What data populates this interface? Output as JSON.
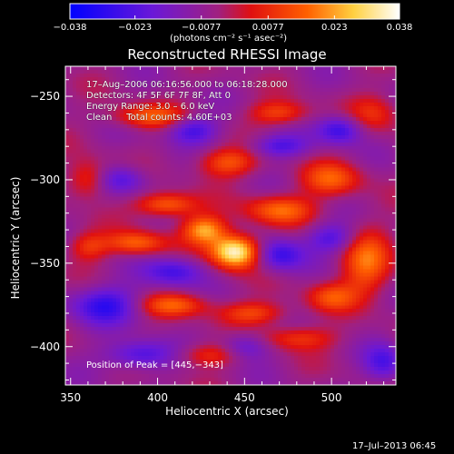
{
  "colorbar": {
    "tick_labels": [
      "−0.038",
      "−0.023",
      "−0.0077",
      "0.0077",
      "0.023",
      "0.038"
    ],
    "tick_values": [
      -0.038,
      -0.023,
      -0.0077,
      0.0077,
      0.023,
      0.038
    ],
    "range": [
      -0.038,
      0.038
    ],
    "unit_text": "(photons cm⁻² s⁻¹ asec⁻²)",
    "colors": [
      "#0000ff",
      "#8020c0",
      "#ff2000",
      "#ffff80",
      "#ffffff"
    ]
  },
  "info": {
    "line1": "17–Aug–2006 06:16:56.000 to 06:18:28.000",
    "line2": "Detectors: 4F 5F 6F 7F 8F, Att 0",
    "line3": "Energy Range: 3.0 – 6.0 keV",
    "line4": "Clean     Total counts: 4.60E+03"
  },
  "peak_text": "Position of Peak = [445,−343]",
  "timestamp": "17–Jul–2013 06:45",
  "chart_data": {
    "type": "heatmap",
    "title": "Reconstructed RHESSI Image",
    "xlabel": "Heliocentric X (arcsec)",
    "ylabel": "Heliocentric Y (arcsec)",
    "xlim": [
      347,
      537
    ],
    "ylim": [
      -423,
      -232
    ],
    "x_ticks": [
      350,
      400,
      450,
      500
    ],
    "x_tick_labels": [
      "350",
      "400",
      "450",
      "500"
    ],
    "y_ticks": [
      -250,
      -300,
      -350,
      -400
    ],
    "y_tick_labels": [
      "−250",
      "−300",
      "−350",
      "−400"
    ],
    "value_range": [
      -0.038,
      0.038
    ],
    "peak": {
      "x": 445,
      "y": -343,
      "value": 0.038
    },
    "features": [
      {
        "x": 445,
        "y": -343,
        "sx": 10,
        "sy": 7,
        "amp": 1.0
      },
      {
        "x": 427,
        "y": -330,
        "sx": 9,
        "sy": 6,
        "amp": 0.65
      },
      {
        "x": 405,
        "y": -315,
        "sx": 12,
        "sy": 5,
        "amp": 0.55
      },
      {
        "x": 388,
        "y": -338,
        "sx": 12,
        "sy": 5,
        "amp": 0.5
      },
      {
        "x": 470,
        "y": -318,
        "sx": 14,
        "sy": 6,
        "amp": 0.5
      },
      {
        "x": 500,
        "y": -300,
        "sx": 12,
        "sy": 7,
        "amp": 0.45
      },
      {
        "x": 440,
        "y": -290,
        "sx": 12,
        "sy": 6,
        "amp": 0.45
      },
      {
        "x": 395,
        "y": -262,
        "sx": 15,
        "sy": 5,
        "amp": 0.45
      },
      {
        "x": 470,
        "y": -260,
        "sx": 12,
        "sy": 5,
        "amp": 0.4
      },
      {
        "x": 360,
        "y": -300,
        "sx": 8,
        "sy": 8,
        "amp": 0.4
      },
      {
        "x": 360,
        "y": -340,
        "sx": 8,
        "sy": 6,
        "amp": 0.35
      },
      {
        "x": 410,
        "y": -375,
        "sx": 14,
        "sy": 5,
        "amp": 0.45
      },
      {
        "x": 455,
        "y": -380,
        "sx": 14,
        "sy": 5,
        "amp": 0.4
      },
      {
        "x": 520,
        "y": -350,
        "sx": 10,
        "sy": 14,
        "amp": 0.5
      },
      {
        "x": 500,
        "y": -370,
        "sx": 10,
        "sy": 6,
        "amp": 0.4
      },
      {
        "x": 480,
        "y": -395,
        "sx": 16,
        "sy": 5,
        "amp": 0.35
      },
      {
        "x": 430,
        "y": -405,
        "sx": 14,
        "sy": 5,
        "amp": 0.35
      },
      {
        "x": 525,
        "y": -260,
        "sx": 10,
        "sy": 8,
        "amp": 0.3
      },
      {
        "x": 505,
        "y": -270,
        "sx": 9,
        "sy": 6,
        "amp": -0.5
      },
      {
        "x": 420,
        "y": -270,
        "sx": 10,
        "sy": 6,
        "amp": -0.45
      },
      {
        "x": 470,
        "y": -280,
        "sx": 12,
        "sy": 5,
        "amp": -0.4
      },
      {
        "x": 380,
        "y": -300,
        "sx": 10,
        "sy": 6,
        "amp": -0.4
      },
      {
        "x": 470,
        "y": -345,
        "sx": 10,
        "sy": 7,
        "amp": -0.5
      },
      {
        "x": 500,
        "y": -335,
        "sx": 10,
        "sy": 6,
        "amp": -0.4
      },
      {
        "x": 410,
        "y": -355,
        "sx": 12,
        "sy": 6,
        "amp": -0.45
      },
      {
        "x": 370,
        "y": -375,
        "sx": 14,
        "sy": 8,
        "amp": -0.5
      },
      {
        "x": 450,
        "y": -400,
        "sx": 10,
        "sy": 6,
        "amp": -0.4
      },
      {
        "x": 390,
        "y": -405,
        "sx": 14,
        "sy": 6,
        "amp": -0.45
      },
      {
        "x": 530,
        "y": -410,
        "sx": 8,
        "sy": 8,
        "amp": -0.4
      }
    ]
  }
}
